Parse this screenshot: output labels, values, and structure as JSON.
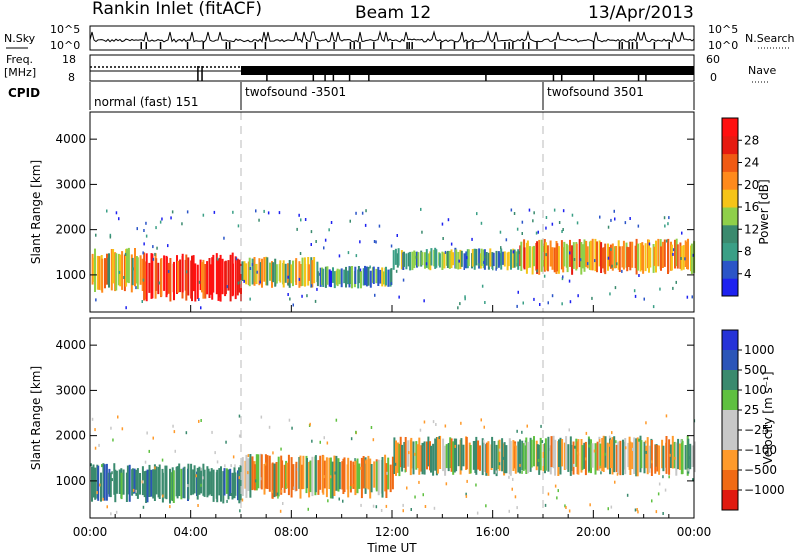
{
  "header": {
    "station": "Rankin Inlet (fitACF)",
    "beam": "Beam 12",
    "date": "13/Apr/2013"
  },
  "top_strip": {
    "left_label_1": "N.Sky",
    "right_label_1": "N.Search",
    "left_ticks_1": [
      "10^5",
      "10^0"
    ],
    "right_ticks_1": [
      "10^5",
      "10^0"
    ],
    "left_label_2a": "Freq.",
    "left_label_2b": "[MHz]",
    "right_label_2": "Nave",
    "left_ticks_2": [
      "18",
      "8"
    ],
    "right_ticks_2": [
      "60",
      "0"
    ],
    "cpid_label": "CPID",
    "modes": [
      {
        "label": "normal (fast) 151",
        "start": 0
      },
      {
        "label": "twofsound -3501",
        "start": 6
      },
      {
        "label": "twofsound 3501",
        "start": 18
      }
    ]
  },
  "colors": {
    "power_scale": [
      "#1e22f0",
      "#2b55c8",
      "#3a9f86",
      "#3a8a6e",
      "#8fd04a",
      "#f5c418",
      "#ff8a1c",
      "#f05a14",
      "#e61a10",
      "#ff1010"
    ],
    "velocity_scale": [
      "#2633d8",
      "#2b55b8",
      "#3a8a6e",
      "#5fc040",
      "#c8c8c8",
      "#c8c8c8",
      "#ff9a2a",
      "#f06a14",
      "#e01a10"
    ]
  },
  "chart_data": [
    {
      "type": "heatmap",
      "quantity": "power",
      "ylabel": "Slant Range [km]",
      "xlim": [
        0,
        24
      ],
      "ylim": [
        180,
        4600
      ],
      "yticks": [
        "1000",
        "2000",
        "3000",
        "4000"
      ],
      "yticks_values": [
        1000,
        2000,
        3000,
        4000
      ],
      "colorbar": {
        "label": "Power [dB]",
        "ticks": [
          "4",
          "8",
          "12",
          "16",
          "20",
          "24",
          "28"
        ],
        "range": [
          0,
          32
        ]
      },
      "features": [
        {
          "x": [
            0.0,
            2.0
          ],
          "y": [
            600,
            1600
          ],
          "value": 18
        },
        {
          "x": [
            2.0,
            6.0
          ],
          "y": [
            400,
            1500
          ],
          "value": 28
        },
        {
          "x": [
            6.0,
            9.0
          ],
          "y": [
            700,
            1400
          ],
          "value": 16
        },
        {
          "x": [
            9.0,
            12.0
          ],
          "y": [
            700,
            1200
          ],
          "value": 10
        },
        {
          "x": [
            12.0,
            17.0
          ],
          "y": [
            1100,
            1600
          ],
          "value": 12
        },
        {
          "x": [
            17.0,
            24.0
          ],
          "y": [
            1000,
            1800
          ],
          "value": 20
        }
      ]
    },
    {
      "type": "heatmap",
      "quantity": "velocity",
      "ylabel": "Slant Range [km]",
      "xlabel": "Time UT",
      "xlim": [
        0,
        24
      ],
      "ylim": [
        180,
        4600
      ],
      "xticks": [
        "00:00",
        "04:00",
        "08:00",
        "12:00",
        "16:00",
        "20:00",
        "00:00"
      ],
      "yticks": [
        "1000",
        "2000",
        "3000",
        "4000"
      ],
      "yticks_values": [
        1000,
        2000,
        3000,
        4000
      ],
      "colorbar": {
        "label": "Velocity [m s⁻¹]",
        "ticks": [
          "1000",
          "500",
          "100",
          "25",
          "−25",
          "−100",
          "−500",
          "−1000"
        ]
      },
      "features": [
        {
          "x": [
            0.0,
            6.0
          ],
          "y": [
            500,
            1400
          ],
          "value": 200
        },
        {
          "x": [
            6.0,
            12.0
          ],
          "y": [
            600,
            1600
          ],
          "value": -50
        },
        {
          "x": [
            12.0,
            24.0
          ],
          "y": [
            1100,
            2000
          ],
          "value": 0
        }
      ]
    }
  ]
}
